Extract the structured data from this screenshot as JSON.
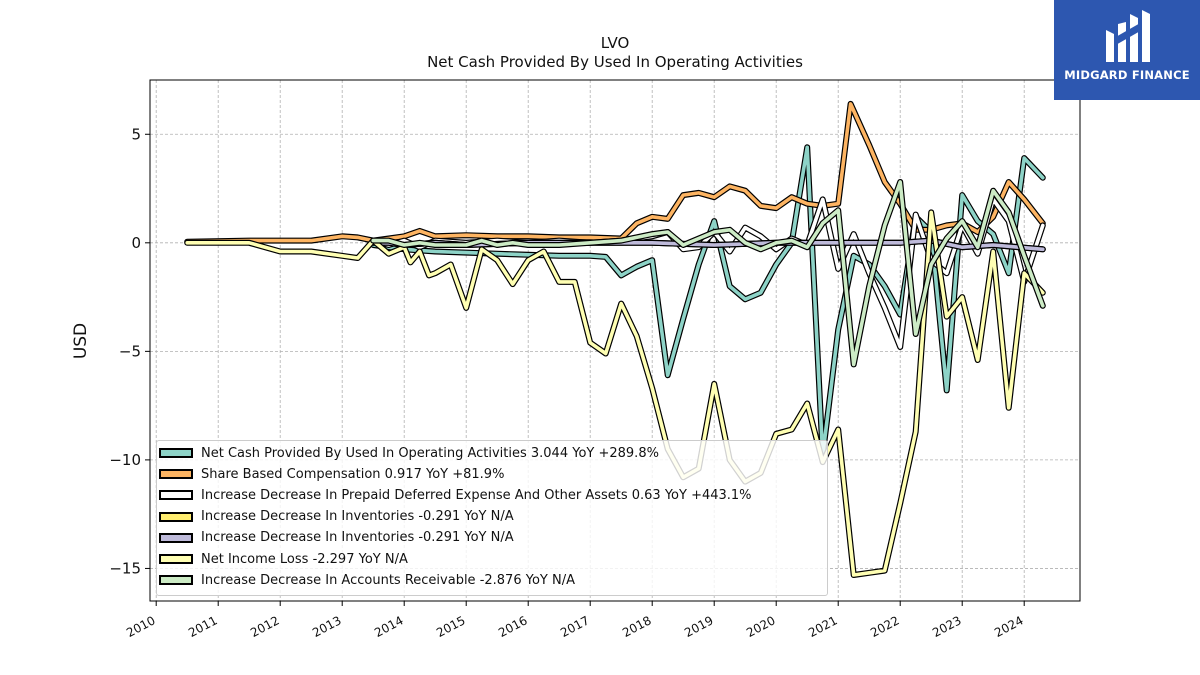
{
  "chart_data": {
    "type": "line",
    "title": "LVO",
    "subtitle": "Net Cash Provided By Used In Operating Activities",
    "xlabel": "",
    "ylabel": "USD",
    "xlim": [
      2009.9,
      2024.9
    ],
    "ylim": [
      -16.5,
      7.5
    ],
    "x_ticks": [
      "2010",
      "2011",
      "2012",
      "2013",
      "2014",
      "2015",
      "2016",
      "2017",
      "2018",
      "2019",
      "2020",
      "2021",
      "2022",
      "2023",
      "2024"
    ],
    "y_ticks": [
      5,
      0,
      -5,
      -10,
      -15
    ],
    "y_tick_labels": [
      "5",
      "0",
      "−5",
      "−10",
      "−15"
    ],
    "grid": true,
    "legend_position": "lower-left",
    "series": [
      {
        "name": "Net Cash Provided By Used In Operating Activities",
        "legend_label": "Net Cash Provided By Used In Operating Activities  3.044 YoY +289.8%",
        "color": "#8dd3c7",
        "points": [
          [
            2013.5,
            -0.1
          ],
          [
            2013.75,
            -0.2
          ],
          [
            2014.0,
            -0.3
          ],
          [
            2014.25,
            -0.35
          ],
          [
            2014.5,
            -0.4
          ],
          [
            2015.0,
            -0.45
          ],
          [
            2015.5,
            -0.5
          ],
          [
            2016.0,
            -0.55
          ],
          [
            2016.5,
            -0.6
          ],
          [
            2017.0,
            -0.6
          ],
          [
            2017.25,
            -0.65
          ],
          [
            2017.5,
            -1.5
          ],
          [
            2017.75,
            -1.1
          ],
          [
            2018.0,
            -0.8
          ],
          [
            2018.25,
            -6.1
          ],
          [
            2018.5,
            -3.5
          ],
          [
            2018.75,
            -1.0
          ],
          [
            2019.0,
            1.0
          ],
          [
            2019.25,
            -2.0
          ],
          [
            2019.5,
            -2.6
          ],
          [
            2019.75,
            -2.3
          ],
          [
            2020.0,
            -1.0
          ],
          [
            2020.25,
            0.0
          ],
          [
            2020.5,
            4.4
          ],
          [
            2020.75,
            -9.8
          ],
          [
            2021.0,
            -4.0
          ],
          [
            2021.25,
            -0.6
          ],
          [
            2021.5,
            -1.0
          ],
          [
            2021.75,
            -2.0
          ],
          [
            2022.0,
            -3.3
          ],
          [
            2022.25,
            1.2
          ],
          [
            2022.5,
            0.5
          ],
          [
            2022.75,
            -6.8
          ],
          [
            2023.0,
            2.2
          ],
          [
            2023.25,
            1.0
          ],
          [
            2023.5,
            0.4
          ],
          [
            2023.75,
            -1.4
          ],
          [
            2024.0,
            3.9
          ],
          [
            2024.3,
            3.0
          ]
        ]
      },
      {
        "name": "Share Based Compensation",
        "legend_label": "Share Based Compensation  0.917 YoY +81.9%",
        "color": "#fdb462",
        "points": [
          [
            2010.5,
            0.05
          ],
          [
            2011.5,
            0.1
          ],
          [
            2012.0,
            0.1
          ],
          [
            2012.5,
            0.1
          ],
          [
            2013.0,
            0.3
          ],
          [
            2013.25,
            0.25
          ],
          [
            2013.5,
            0.1
          ],
          [
            2013.75,
            0.2
          ],
          [
            2014.0,
            0.3
          ],
          [
            2014.25,
            0.55
          ],
          [
            2014.5,
            0.3
          ],
          [
            2015.0,
            0.35
          ],
          [
            2015.5,
            0.3
          ],
          [
            2016.0,
            0.3
          ],
          [
            2016.5,
            0.25
          ],
          [
            2017.0,
            0.25
          ],
          [
            2017.5,
            0.2
          ],
          [
            2017.75,
            0.9
          ],
          [
            2018.0,
            1.2
          ],
          [
            2018.25,
            1.1
          ],
          [
            2018.5,
            2.2
          ],
          [
            2018.75,
            2.3
          ],
          [
            2019.0,
            2.1
          ],
          [
            2019.25,
            2.6
          ],
          [
            2019.5,
            2.4
          ],
          [
            2019.75,
            1.7
          ],
          [
            2020.0,
            1.6
          ],
          [
            2020.25,
            2.1
          ],
          [
            2020.5,
            1.8
          ],
          [
            2020.75,
            1.7
          ],
          [
            2021.0,
            1.8
          ],
          [
            2021.2,
            6.4
          ],
          [
            2021.5,
            4.5
          ],
          [
            2021.75,
            2.8
          ],
          [
            2022.0,
            1.8
          ],
          [
            2022.25,
            0.6
          ],
          [
            2022.5,
            0.6
          ],
          [
            2022.75,
            0.8
          ],
          [
            2023.0,
            0.9
          ],
          [
            2023.25,
            0.5
          ],
          [
            2023.5,
            1.2
          ],
          [
            2023.75,
            2.8
          ],
          [
            2024.0,
            2.0
          ],
          [
            2024.3,
            0.9
          ]
        ]
      },
      {
        "name": "Increase Decrease In Prepaid Deferred Expense And Other Assets",
        "legend_label": "Increase Decrease In Prepaid Deferred Expense And Other Assets  0.63 YoY +443.1%",
        "color": "#ffffff",
        "points": [
          [
            2013.5,
            0.1
          ],
          [
            2013.75,
            -0.1
          ],
          [
            2014.0,
            0.1
          ],
          [
            2014.25,
            -0.2
          ],
          [
            2014.5,
            0.1
          ],
          [
            2015.0,
            0.0
          ],
          [
            2015.5,
            0.1
          ],
          [
            2016.0,
            0.0
          ],
          [
            2016.5,
            0.1
          ],
          [
            2017.0,
            0.0
          ],
          [
            2017.5,
            0.1
          ],
          [
            2018.0,
            0.3
          ],
          [
            2018.25,
            0.5
          ],
          [
            2018.5,
            -0.3
          ],
          [
            2018.75,
            -0.2
          ],
          [
            2019.0,
            0.5
          ],
          [
            2019.25,
            -0.4
          ],
          [
            2019.5,
            0.7
          ],
          [
            2019.75,
            0.3
          ],
          [
            2020.0,
            -0.3
          ],
          [
            2020.25,
            0.2
          ],
          [
            2020.5,
            -0.1
          ],
          [
            2020.75,
            2.0
          ],
          [
            2021.0,
            -1.2
          ],
          [
            2021.25,
            0.4
          ],
          [
            2021.5,
            -1.4
          ],
          [
            2021.75,
            -3.0
          ],
          [
            2022.0,
            -4.8
          ],
          [
            2022.25,
            1.3
          ],
          [
            2022.5,
            -0.8
          ],
          [
            2022.75,
            -1.4
          ],
          [
            2023.0,
            0.8
          ],
          [
            2023.25,
            -0.5
          ],
          [
            2023.5,
            2.0
          ],
          [
            2023.75,
            1.0
          ],
          [
            2024.0,
            -1.8
          ],
          [
            2024.3,
            0.8
          ]
        ]
      },
      {
        "name": "Increase Decrease In Inventories",
        "legend_label": "Increase Decrease In Inventories  -0.291 YoY N/A",
        "color": "#ffed6f",
        "points": [
          [
            2013.5,
            0.0
          ],
          [
            2013.75,
            0.0
          ],
          [
            2014.0,
            -0.1
          ],
          [
            2014.5,
            0.0
          ],
          [
            2015.0,
            -0.1
          ],
          [
            2016.0,
            0.0
          ],
          [
            2017.0,
            0.0
          ],
          [
            2018.0,
            0.0
          ],
          [
            2019.0,
            -0.1
          ],
          [
            2020.0,
            0.0
          ],
          [
            2021.0,
            0.0
          ],
          [
            2022.0,
            0.0
          ],
          [
            2022.5,
            0.1
          ],
          [
            2023.0,
            -0.2
          ],
          [
            2023.5,
            -0.1
          ],
          [
            2024.3,
            -0.3
          ]
        ]
      },
      {
        "name": "Increase Decrease In Inventories",
        "legend_label": "Increase Decrease In Inventories  -0.291 YoY N/A",
        "color": "#bebada",
        "points": [
          [
            2013.5,
            0.0
          ],
          [
            2013.75,
            0.0
          ],
          [
            2014.0,
            -0.1
          ],
          [
            2014.5,
            0.0
          ],
          [
            2015.0,
            -0.1
          ],
          [
            2016.0,
            0.0
          ],
          [
            2017.0,
            0.0
          ],
          [
            2018.0,
            0.0
          ],
          [
            2019.0,
            -0.1
          ],
          [
            2020.0,
            0.0
          ],
          [
            2021.0,
            0.0
          ],
          [
            2022.0,
            0.0
          ],
          [
            2022.5,
            0.1
          ],
          [
            2023.0,
            -0.2
          ],
          [
            2023.5,
            -0.1
          ],
          [
            2024.3,
            -0.3
          ]
        ]
      },
      {
        "name": "Net Income Loss",
        "legend_label": "Net Income Loss  -2.297 YoY N/A",
        "color": "#ffffb3",
        "points": [
          [
            2010.5,
            0.0
          ],
          [
            2011.5,
            0.0
          ],
          [
            2012.0,
            -0.4
          ],
          [
            2012.5,
            -0.4
          ],
          [
            2013.0,
            -0.6
          ],
          [
            2013.25,
            -0.7
          ],
          [
            2013.5,
            0.1
          ],
          [
            2013.75,
            -0.5
          ],
          [
            2014.0,
            -0.2
          ],
          [
            2014.1,
            -0.9
          ],
          [
            2014.25,
            -0.4
          ],
          [
            2014.4,
            -1.5
          ],
          [
            2014.5,
            -1.4
          ],
          [
            2014.75,
            -1.0
          ],
          [
            2015.0,
            -3.0
          ],
          [
            2015.25,
            -0.3
          ],
          [
            2015.5,
            -0.8
          ],
          [
            2015.75,
            -1.9
          ],
          [
            2016.0,
            -0.8
          ],
          [
            2016.25,
            -0.4
          ],
          [
            2016.5,
            -1.8
          ],
          [
            2016.75,
            -1.8
          ],
          [
            2017.0,
            -4.6
          ],
          [
            2017.25,
            -5.1
          ],
          [
            2017.5,
            -2.8
          ],
          [
            2017.75,
            -4.3
          ],
          [
            2018.0,
            -6.7
          ],
          [
            2018.25,
            -9.5
          ],
          [
            2018.5,
            -10.8
          ],
          [
            2018.75,
            -10.4
          ],
          [
            2019.0,
            -6.5
          ],
          [
            2019.25,
            -10.0
          ],
          [
            2019.5,
            -11.0
          ],
          [
            2019.75,
            -10.6
          ],
          [
            2020.0,
            -8.8
          ],
          [
            2020.25,
            -8.6
          ],
          [
            2020.5,
            -7.4
          ],
          [
            2020.75,
            -10.1
          ],
          [
            2021.0,
            -8.6
          ],
          [
            2021.25,
            -15.3
          ],
          [
            2021.5,
            -15.2
          ],
          [
            2021.75,
            -15.1
          ],
          [
            2022.0,
            -12.0
          ],
          [
            2022.25,
            -8.7
          ],
          [
            2022.5,
            1.4
          ],
          [
            2022.75,
            -3.4
          ],
          [
            2023.0,
            -2.5
          ],
          [
            2023.25,
            -5.4
          ],
          [
            2023.5,
            -0.4
          ],
          [
            2023.75,
            -7.6
          ],
          [
            2024.0,
            -1.4
          ],
          [
            2024.3,
            -2.3
          ]
        ]
      },
      {
        "name": "Increase Decrease In Accounts Receivable",
        "legend_label": "Increase Decrease In Accounts Receivable  -2.876 YoY N/A",
        "color": "#ccebc5",
        "points": [
          [
            2013.5,
            0.1
          ],
          [
            2013.75,
            0.1
          ],
          [
            2014.0,
            -0.1
          ],
          [
            2014.25,
            0.0
          ],
          [
            2014.5,
            -0.1
          ],
          [
            2015.0,
            -0.1
          ],
          [
            2015.25,
            0.1
          ],
          [
            2015.5,
            -0.1
          ],
          [
            2015.75,
            0.0
          ],
          [
            2016.0,
            -0.1
          ],
          [
            2016.5,
            -0.1
          ],
          [
            2017.0,
            0.0
          ],
          [
            2017.5,
            0.1
          ],
          [
            2018.0,
            0.4
          ],
          [
            2018.25,
            0.5
          ],
          [
            2018.5,
            -0.1
          ],
          [
            2018.75,
            0.2
          ],
          [
            2019.0,
            0.5
          ],
          [
            2019.25,
            0.6
          ],
          [
            2019.5,
            0.0
          ],
          [
            2019.75,
            -0.3
          ],
          [
            2020.0,
            0.0
          ],
          [
            2020.25,
            0.1
          ],
          [
            2020.5,
            -0.2
          ],
          [
            2020.75,
            0.9
          ],
          [
            2021.0,
            1.5
          ],
          [
            2021.25,
            -5.6
          ],
          [
            2021.5,
            -2.0
          ],
          [
            2021.75,
            0.8
          ],
          [
            2022.0,
            2.8
          ],
          [
            2022.25,
            -4.2
          ],
          [
            2022.5,
            -1.0
          ],
          [
            2022.75,
            0.2
          ],
          [
            2023.0,
            1.0
          ],
          [
            2023.25,
            -0.2
          ],
          [
            2023.5,
            2.4
          ],
          [
            2023.75,
            1.4
          ],
          [
            2024.0,
            -0.6
          ],
          [
            2024.3,
            -2.9
          ]
        ]
      }
    ]
  },
  "branding": {
    "logo_text": "MIDGARD FINANCE",
    "logo_icon": "midgard-logo-icon",
    "logo_bg": "#2d57b0"
  }
}
